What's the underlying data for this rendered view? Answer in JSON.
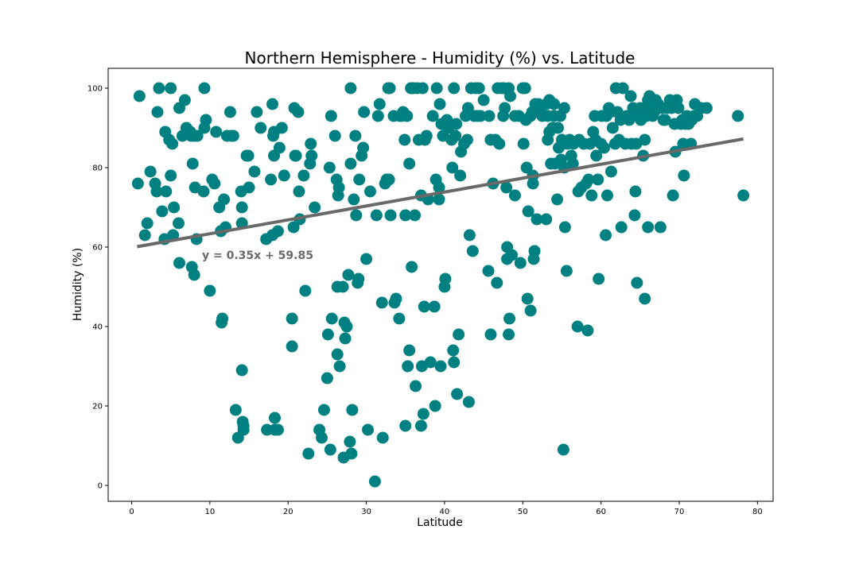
{
  "chart_data": {
    "type": "scatter",
    "title": "Northern Hemisphere - Humidity (%) vs. Latitude",
    "xlabel": "Latitude",
    "ylabel": "Humidity (%)",
    "xlim": [
      -3,
      82
    ],
    "ylim": [
      -4,
      105
    ],
    "xticks": [
      0,
      10,
      20,
      30,
      40,
      50,
      60,
      70,
      80
    ],
    "yticks": [
      0,
      20,
      40,
      60,
      80,
      100
    ],
    "grid": false,
    "point_color": "#008080",
    "line_color": "#696969",
    "annotation": {
      "text": "y = 0.35x + 59.85",
      "x": 9,
      "y": 58,
      "color": "#696969"
    },
    "regression": {
      "slope": 0.35,
      "intercept": 59.85,
      "x_range": [
        0.7,
        78.2
      ]
    },
    "points": [
      [
        0.8,
        76
      ],
      [
        1,
        98
      ],
      [
        1.7,
        63
      ],
      [
        2,
        66
      ],
      [
        2.4,
        79
      ],
      [
        3,
        76
      ],
      [
        3.2,
        74
      ],
      [
        3.3,
        94
      ],
      [
        3.5,
        100
      ],
      [
        3.9,
        69
      ],
      [
        4.2,
        62
      ],
      [
        4.3,
        89
      ],
      [
        4.4,
        74
      ],
      [
        4.8,
        87
      ],
      [
        5,
        100
      ],
      [
        5,
        78
      ],
      [
        5.2,
        86
      ],
      [
        5.3,
        63
      ],
      [
        5.4,
        70
      ],
      [
        6,
        66
      ],
      [
        6.1,
        56
      ],
      [
        6.1,
        95
      ],
      [
        6.5,
        88
      ],
      [
        6.8,
        97
      ],
      [
        7,
        90
      ],
      [
        7.5,
        89
      ],
      [
        7.6,
        88
      ],
      [
        7.7,
        55
      ],
      [
        7.8,
        81
      ],
      [
        8,
        53
      ],
      [
        8,
        88
      ],
      [
        8.1,
        75
      ],
      [
        8.3,
        62
      ],
      [
        8.4,
        88
      ],
      [
        9.2,
        74
      ],
      [
        9.3,
        90
      ],
      [
        9.3,
        100
      ],
      [
        9.5,
        92
      ],
      [
        10,
        49
      ],
      [
        10.3,
        77
      ],
      [
        10.6,
        76
      ],
      [
        10.8,
        89
      ],
      [
        11.2,
        70
      ],
      [
        11.4,
        64
      ],
      [
        11.5,
        41
      ],
      [
        11.6,
        42
      ],
      [
        11.8,
        72
      ],
      [
        12,
        65
      ],
      [
        12.2,
        88
      ],
      [
        12.6,
        94
      ],
      [
        12.7,
        88
      ],
      [
        13,
        88
      ],
      [
        13.3,
        19
      ],
      [
        13.6,
        12
      ],
      [
        14,
        74
      ],
      [
        14.1,
        29
      ],
      [
        14.1,
        66
      ],
      [
        14.1,
        70
      ],
      [
        14.2,
        16
      ],
      [
        14.3,
        15
      ],
      [
        14.3,
        14
      ],
      [
        14.7,
        83
      ],
      [
        14.9,
        83
      ],
      [
        15,
        75
      ],
      [
        15.7,
        79
      ],
      [
        16,
        94
      ],
      [
        16.5,
        90
      ],
      [
        17.2,
        62
      ],
      [
        17.3,
        14
      ],
      [
        17.8,
        77
      ],
      [
        18,
        96
      ],
      [
        18,
        63
      ],
      [
        18.1,
        88
      ],
      [
        18.2,
        83
      ],
      [
        18.2,
        89
      ],
      [
        18.3,
        17
      ],
      [
        18.3,
        14
      ],
      [
        18.7,
        14
      ],
      [
        18.7,
        64
      ],
      [
        18.9,
        85
      ],
      [
        19.2,
        90
      ],
      [
        19.5,
        78
      ],
      [
        20.5,
        42
      ],
      [
        20.5,
        35
      ],
      [
        20.7,
        65
      ],
      [
        20.8,
        95
      ],
      [
        20.9,
        83
      ],
      [
        21,
        83
      ],
      [
        21.3,
        94
      ],
      [
        21.4,
        74
      ],
      [
        21.5,
        67
      ],
      [
        22,
        78
      ],
      [
        22.2,
        49
      ],
      [
        22.6,
        8
      ],
      [
        22.8,
        81
      ],
      [
        22.9,
        86
      ],
      [
        23,
        83
      ],
      [
        23.4,
        70
      ],
      [
        24,
        14
      ],
      [
        24.3,
        12
      ],
      [
        24.6,
        19
      ],
      [
        25,
        27
      ],
      [
        25.1,
        38
      ],
      [
        25.3,
        80
      ],
      [
        25.4,
        9
      ],
      [
        25.5,
        93
      ],
      [
        25.6,
        42
      ],
      [
        26,
        88
      ],
      [
        26.2,
        77
      ],
      [
        26.3,
        50
      ],
      [
        26.3,
        33
      ],
      [
        26.4,
        73
      ],
      [
        26.5,
        75
      ],
      [
        26.6,
        30
      ],
      [
        27,
        50
      ],
      [
        27.1,
        7
      ],
      [
        27.2,
        41
      ],
      [
        27.3,
        37
      ],
      [
        27.5,
        40
      ],
      [
        27.7,
        53
      ],
      [
        27.9,
        11
      ],
      [
        28,
        81
      ],
      [
        28,
        100
      ],
      [
        28.1,
        8
      ],
      [
        28.2,
        19
      ],
      [
        28.4,
        72
      ],
      [
        28.6,
        88
      ],
      [
        28.7,
        68
      ],
      [
        28.9,
        51
      ],
      [
        29,
        52
      ],
      [
        29.1,
        77
      ],
      [
        29.4,
        83
      ],
      [
        29.6,
        85
      ],
      [
        29.7,
        94
      ],
      [
        30,
        57
      ],
      [
        30.2,
        14
      ],
      [
        30.5,
        74
      ],
      [
        31.1,
        1
      ],
      [
        31.3,
        68
      ],
      [
        31.5,
        93
      ],
      [
        31.7,
        96
      ],
      [
        32,
        46
      ],
      [
        32.1,
        12
      ],
      [
        32.4,
        76
      ],
      [
        32.6,
        77
      ],
      [
        32.8,
        100
      ],
      [
        32.9,
        77
      ],
      [
        33,
        100
      ],
      [
        33.1,
        68
      ],
      [
        33.5,
        93
      ],
      [
        33.6,
        46
      ],
      [
        33.8,
        47
      ],
      [
        34.2,
        42
      ],
      [
        34.3,
        93
      ],
      [
        34.5,
        93
      ],
      [
        34.7,
        94
      ],
      [
        34.9,
        87
      ],
      [
        35,
        68
      ],
      [
        35,
        15
      ],
      [
        35.2,
        93
      ],
      [
        35.3,
        30
      ],
      [
        35.5,
        81
      ],
      [
        35.5,
        34
      ],
      [
        35.7,
        100
      ],
      [
        35.8,
        55
      ],
      [
        35.9,
        100
      ],
      [
        36,
        100
      ],
      [
        36.2,
        68
      ],
      [
        36.3,
        25
      ],
      [
        36.5,
        100
      ],
      [
        36.7,
        87
      ],
      [
        37,
        73
      ],
      [
        37,
        15
      ],
      [
        37.1,
        30
      ],
      [
        37.2,
        100
      ],
      [
        37.3,
        18
      ],
      [
        37.4,
        45
      ],
      [
        37.5,
        87
      ],
      [
        37.7,
        88
      ],
      [
        37.9,
        72
      ],
      [
        38.2,
        31
      ],
      [
        38.5,
        93
      ],
      [
        38.7,
        45
      ],
      [
        38.8,
        20
      ],
      [
        38.9,
        77
      ],
      [
        39,
        100
      ],
      [
        39.3,
        75
      ],
      [
        39.3,
        72
      ],
      [
        39.4,
        96
      ],
      [
        39.5,
        30
      ],
      [
        39.6,
        91
      ],
      [
        39.8,
        88
      ],
      [
        40,
        50
      ],
      [
        40.1,
        52
      ],
      [
        40.3,
        92
      ],
      [
        40.5,
        90
      ],
      [
        40.9,
        87
      ],
      [
        41,
        80
      ],
      [
        41.1,
        34
      ],
      [
        41.2,
        31
      ],
      [
        41.2,
        100
      ],
      [
        41.4,
        88
      ],
      [
        41.5,
        91
      ],
      [
        41.6,
        23
      ],
      [
        41.8,
        38
      ],
      [
        42,
        78
      ],
      [
        42.1,
        84
      ],
      [
        42.5,
        86
      ],
      [
        42.7,
        93
      ],
      [
        42.9,
        87
      ],
      [
        43,
        95
      ],
      [
        43.1,
        21
      ],
      [
        43.2,
        63
      ],
      [
        43.4,
        100
      ],
      [
        43.6,
        59
      ],
      [
        43.8,
        93
      ],
      [
        44,
        100
      ],
      [
        44.2,
        93
      ],
      [
        44.4,
        100
      ],
      [
        44.6,
        93
      ],
      [
        45,
        97
      ],
      [
        45.6,
        54
      ],
      [
        45.7,
        93
      ],
      [
        45.9,
        87
      ],
      [
        45.9,
        38
      ],
      [
        46.2,
        76
      ],
      [
        46.5,
        87
      ],
      [
        46.7,
        51
      ],
      [
        46.8,
        100
      ],
      [
        47,
        86
      ],
      [
        47.3,
        100
      ],
      [
        47.5,
        93
      ],
      [
        47.6,
        100
      ],
      [
        47.7,
        95
      ],
      [
        47.9,
        75
      ],
      [
        48,
        60
      ],
      [
        48,
        57
      ],
      [
        48.2,
        100
      ],
      [
        48.2,
        38
      ],
      [
        48.3,
        42
      ],
      [
        48.4,
        98
      ],
      [
        48.6,
        58
      ],
      [
        49,
        73
      ],
      [
        49,
        93
      ],
      [
        49.5,
        93
      ],
      [
        49.7,
        56
      ],
      [
        50,
        100
      ],
      [
        50.1,
        86
      ],
      [
        50.3,
        100
      ],
      [
        50.4,
        92
      ],
      [
        50.5,
        80
      ],
      [
        50.6,
        47
      ],
      [
        50.7,
        69
      ],
      [
        51,
        44
      ],
      [
        51,
        93
      ],
      [
        51.2,
        94
      ],
      [
        51.3,
        78
      ],
      [
        51.3,
        76
      ],
      [
        51.4,
        57
      ],
      [
        51.5,
        59
      ],
      [
        51.6,
        96
      ],
      [
        51.8,
        67
      ],
      [
        52,
        96
      ],
      [
        52.3,
        95
      ],
      [
        52.5,
        93
      ],
      [
        53,
        67
      ],
      [
        53,
        96
      ],
      [
        53.2,
        87
      ],
      [
        53.2,
        93
      ],
      [
        53.4,
        89
      ],
      [
        53.4,
        97
      ],
      [
        53.6,
        81
      ],
      [
        53.8,
        90
      ],
      [
        54,
        93
      ],
      [
        54,
        96
      ],
      [
        54.1,
        81
      ],
      [
        54.4,
        72
      ],
      [
        54.5,
        90
      ],
      [
        54.6,
        85
      ],
      [
        54.8,
        93
      ],
      [
        54.9,
        82
      ],
      [
        55,
        87
      ],
      [
        55.2,
        9
      ],
      [
        55.3,
        95
      ],
      [
        55.3,
        80
      ],
      [
        55.4,
        65
      ],
      [
        55.6,
        54
      ],
      [
        55.7,
        86
      ],
      [
        56,
        87
      ],
      [
        56.2,
        83
      ],
      [
        56.4,
        81
      ],
      [
        56.5,
        86
      ],
      [
        57,
        40
      ],
      [
        57.1,
        74
      ],
      [
        57.2,
        87
      ],
      [
        57.5,
        75
      ],
      [
        57.8,
        86
      ],
      [
        58.1,
        76
      ],
      [
        58.3,
        39
      ],
      [
        58.4,
        77
      ],
      [
        58.6,
        86
      ],
      [
        58.8,
        73
      ],
      [
        59,
        89
      ],
      [
        59.2,
        93
      ],
      [
        59.3,
        87
      ],
      [
        59.4,
        83
      ],
      [
        59.6,
        77
      ],
      [
        59.7,
        52
      ],
      [
        60,
        86
      ],
      [
        60.1,
        93
      ],
      [
        60.4,
        85
      ],
      [
        60.6,
        63
      ],
      [
        60.7,
        93
      ],
      [
        60.8,
        73
      ],
      [
        61,
        95
      ],
      [
        61.2,
        94
      ],
      [
        61.3,
        79
      ],
      [
        61.5,
        90
      ],
      [
        61.8,
        86
      ],
      [
        61.9,
        100
      ],
      [
        62.1,
        94
      ],
      [
        62.3,
        87
      ],
      [
        62.5,
        92
      ],
      [
        62.6,
        65
      ],
      [
        62.8,
        100
      ],
      [
        63.1,
        86
      ],
      [
        63.3,
        93
      ],
      [
        63.6,
        92
      ],
      [
        63.8,
        98
      ],
      [
        63.9,
        86
      ],
      [
        64.1,
        95
      ],
      [
        64.3,
        68
      ],
      [
        64.4,
        74
      ],
      [
        64.5,
        86
      ],
      [
        64.6,
        51
      ],
      [
        64.7,
        93
      ],
      [
        64.9,
        93
      ],
      [
        65,
        95
      ],
      [
        65.1,
        92
      ],
      [
        65.4,
        83
      ],
      [
        65.6,
        87
      ],
      [
        65.6,
        47
      ],
      [
        65.8,
        93
      ],
      [
        66,
        97
      ],
      [
        66,
        65
      ],
      [
        66.2,
        98
      ],
      [
        66.4,
        95
      ],
      [
        66.6,
        93
      ],
      [
        66.8,
        94
      ],
      [
        67,
        97
      ],
      [
        67.3,
        96
      ],
      [
        67.6,
        65
      ],
      [
        67.8,
        95
      ],
      [
        68,
        92
      ],
      [
        68.2,
        92
      ],
      [
        68.5,
        95
      ],
      [
        68.8,
        97
      ],
      [
        69,
        95
      ],
      [
        69.2,
        73
      ],
      [
        69.4,
        91
      ],
      [
        69.5,
        84
      ],
      [
        69.7,
        97
      ],
      [
        69.9,
        95
      ],
      [
        70.2,
        91
      ],
      [
        70.4,
        92
      ],
      [
        70.5,
        86
      ],
      [
        70.6,
        78
      ],
      [
        70.8,
        91
      ],
      [
        71,
        93
      ],
      [
        71.2,
        91
      ],
      [
        71.5,
        86
      ],
      [
        71.6,
        92
      ],
      [
        71.9,
        93
      ],
      [
        72,
        96
      ],
      [
        72.3,
        93
      ],
      [
        72.8,
        95
      ],
      [
        73.5,
        95
      ],
      [
        77.5,
        93
      ],
      [
        78.2,
        73
      ]
    ]
  }
}
